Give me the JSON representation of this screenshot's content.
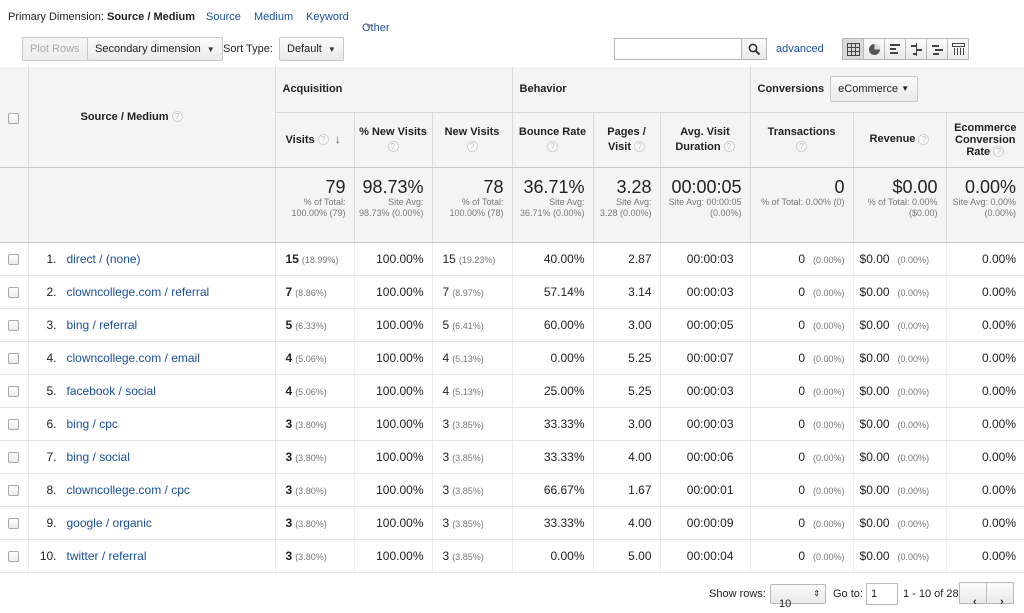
{
  "dimension_bar": {
    "label": "Primary Dimension:",
    "active": "Source / Medium",
    "links": [
      "Source",
      "Medium",
      "Keyword"
    ],
    "other": "Other"
  },
  "toolbar": {
    "plot_rows": "Plot Rows",
    "secondary_dimension": "Secondary dimension",
    "sort_type_label": "Sort Type:",
    "sort_type_value": "Default",
    "search_value": "",
    "advanced": "advanced"
  },
  "table": {
    "groups": {
      "acquisition": "Acquisition",
      "behavior": "Behavior",
      "conversions": "Conversions",
      "conversions_select": "eCommerce"
    },
    "columns": {
      "source_medium": "Source / Medium",
      "visits": "Visits",
      "new_visits_pct": "% New Visits",
      "new_visits": "New Visits",
      "bounce_rate": "Bounce Rate",
      "pages_visit": "Pages / Visit",
      "avg_duration": "Avg. Visit Duration",
      "transactions": "Transactions",
      "revenue": "Revenue",
      "ecommerce_rate": "Ecommerce Conversion Rate"
    },
    "totals": {
      "visits": {
        "main": "79",
        "sub": "% of Total: 100.00% (79)"
      },
      "new_visits_pct": {
        "main": "98.73%",
        "sub": "Site Avg: 98.73% (0.00%)"
      },
      "new_visits": {
        "main": "78",
        "sub": "% of Total: 100.00% (78)"
      },
      "bounce_rate": {
        "main": "36.71%",
        "sub": "Site Avg: 36.71% (0.00%)"
      },
      "pages_visit": {
        "main": "3.28",
        "sub": "Site Avg: 3.28 (0.00%)"
      },
      "avg_duration": {
        "main": "00:00:05",
        "sub": "Site Avg: 00:00:05 (0.00%)"
      },
      "transactions": {
        "main": "0",
        "sub": "% of Total: 0.00% (0)"
      },
      "revenue": {
        "main": "$0.00",
        "sub": "% of Total: 0.00% ($0.00)"
      },
      "ecommerce_rate": {
        "main": "0.00%",
        "sub": "Site Avg: 0.00% (0.00%)"
      }
    },
    "rows": [
      {
        "num": "1.",
        "source": "direct / (none)",
        "visits": "15",
        "visits_pct": "(18.99%)",
        "new_pct": "100.00%",
        "new_visits": "15",
        "new_visits_pct": "(19.23%)",
        "bounce": "40.00%",
        "pages": "2.87",
        "duration": "00:00:03",
        "trans": "0",
        "trans_pct": "(0.00%)",
        "revenue": "$0.00",
        "revenue_pct": "(0.00%)",
        "rate": "0.00%"
      },
      {
        "num": "2.",
        "source": "clowncollege.com / referral",
        "visits": "7",
        "visits_pct": "(8.86%)",
        "new_pct": "100.00%",
        "new_visits": "7",
        "new_visits_pct": "(8.97%)",
        "bounce": "57.14%",
        "pages": "3.14",
        "duration": "00:00:03",
        "trans": "0",
        "trans_pct": "(0.00%)",
        "revenue": "$0.00",
        "revenue_pct": "(0.00%)",
        "rate": "0.00%"
      },
      {
        "num": "3.",
        "source": "bing / referral",
        "visits": "5",
        "visits_pct": "(6.33%)",
        "new_pct": "100.00%",
        "new_visits": "5",
        "new_visits_pct": "(6.41%)",
        "bounce": "60.00%",
        "pages": "3.00",
        "duration": "00:00:05",
        "trans": "0",
        "trans_pct": "(0.00%)",
        "revenue": "$0.00",
        "revenue_pct": "(0.00%)",
        "rate": "0.00%"
      },
      {
        "num": "4.",
        "source": "clowncollege.com / email",
        "visits": "4",
        "visits_pct": "(5.06%)",
        "new_pct": "100.00%",
        "new_visits": "4",
        "new_visits_pct": "(5.13%)",
        "bounce": "0.00%",
        "pages": "5.25",
        "duration": "00:00:07",
        "trans": "0",
        "trans_pct": "(0.00%)",
        "revenue": "$0.00",
        "revenue_pct": "(0.00%)",
        "rate": "0.00%"
      },
      {
        "num": "5.",
        "source": "facebook / social",
        "visits": "4",
        "visits_pct": "(5.06%)",
        "new_pct": "100.00%",
        "new_visits": "4",
        "new_visits_pct": "(5.13%)",
        "bounce": "25.00%",
        "pages": "5.25",
        "duration": "00:00:03",
        "trans": "0",
        "trans_pct": "(0.00%)",
        "revenue": "$0.00",
        "revenue_pct": "(0.00%)",
        "rate": "0.00%"
      },
      {
        "num": "6.",
        "source": "bing / cpc",
        "visits": "3",
        "visits_pct": "(3.80%)",
        "new_pct": "100.00%",
        "new_visits": "3",
        "new_visits_pct": "(3.85%)",
        "bounce": "33.33%",
        "pages": "3.00",
        "duration": "00:00:03",
        "trans": "0",
        "trans_pct": "(0.00%)",
        "revenue": "$0.00",
        "revenue_pct": "(0.00%)",
        "rate": "0.00%"
      },
      {
        "num": "7.",
        "source": "bing / social",
        "visits": "3",
        "visits_pct": "(3.80%)",
        "new_pct": "100.00%",
        "new_visits": "3",
        "new_visits_pct": "(3.85%)",
        "bounce": "33.33%",
        "pages": "4.00",
        "duration": "00:00:06",
        "trans": "0",
        "trans_pct": "(0.00%)",
        "revenue": "$0.00",
        "revenue_pct": "(0.00%)",
        "rate": "0.00%"
      },
      {
        "num": "8.",
        "source": "clowncollege.com / cpc",
        "visits": "3",
        "visits_pct": "(3.80%)",
        "new_pct": "100.00%",
        "new_visits": "3",
        "new_visits_pct": "(3.85%)",
        "bounce": "66.67%",
        "pages": "1.67",
        "duration": "00:00:01",
        "trans": "0",
        "trans_pct": "(0.00%)",
        "revenue": "$0.00",
        "revenue_pct": "(0.00%)",
        "rate": "0.00%"
      },
      {
        "num": "9.",
        "source": "google / organic",
        "visits": "3",
        "visits_pct": "(3.80%)",
        "new_pct": "100.00%",
        "new_visits": "3",
        "new_visits_pct": "(3.85%)",
        "bounce": "33.33%",
        "pages": "4.00",
        "duration": "00:00:09",
        "trans": "0",
        "trans_pct": "(0.00%)",
        "revenue": "$0.00",
        "revenue_pct": "(0.00%)",
        "rate": "0.00%"
      },
      {
        "num": "10.",
        "source": "twitter / referral",
        "visits": "3",
        "visits_pct": "(3.80%)",
        "new_pct": "100.00%",
        "new_visits": "3",
        "new_visits_pct": "(3.85%)",
        "bounce": "0.00%",
        "pages": "5.00",
        "duration": "00:00:04",
        "trans": "0",
        "trans_pct": "(0.00%)",
        "revenue": "$0.00",
        "revenue_pct": "(0.00%)",
        "rate": "0.00%"
      }
    ]
  },
  "footer": {
    "show_rows_label": "Show rows:",
    "show_rows_value": "10",
    "goto_label": "Go to:",
    "goto_value": "1",
    "range": "1 - 10 of 28"
  },
  "icons": {
    "search": "search-icon",
    "views": [
      "table-view-icon",
      "pie-view-icon",
      "performance-view-icon",
      "comparison-view-icon",
      "term-cloud-icon",
      "pivot-view-icon"
    ],
    "pager": [
      "chevron-left-icon",
      "chevron-right-icon"
    ]
  },
  "colors": {
    "link": "#1a4fa3",
    "header_bg": "#f4f4f4"
  }
}
